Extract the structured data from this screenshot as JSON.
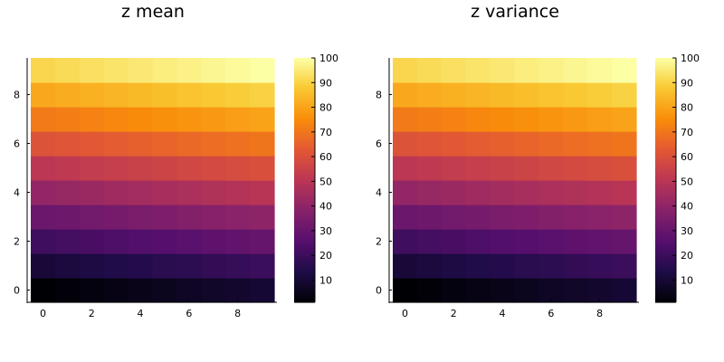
{
  "chart_data": [
    {
      "type": "heatmap",
      "title": "z mean",
      "x": [
        0,
        1,
        2,
        3,
        4,
        5,
        6,
        7,
        8,
        9
      ],
      "y": [
        0,
        1,
        2,
        3,
        4,
        5,
        6,
        7,
        8,
        9
      ],
      "z": [
        [
          1,
          2,
          3,
          4,
          5,
          6,
          7,
          8,
          9,
          10
        ],
        [
          11,
          12,
          13,
          14,
          15,
          16,
          17,
          18,
          19,
          20
        ],
        [
          21,
          22,
          23,
          24,
          25,
          26,
          27,
          28,
          29,
          30
        ],
        [
          31,
          32,
          33,
          34,
          35,
          36,
          37,
          38,
          39,
          40
        ],
        [
          41,
          42,
          43,
          44,
          45,
          46,
          47,
          48,
          49,
          50
        ],
        [
          51,
          52,
          53,
          54,
          55,
          56,
          57,
          58,
          59,
          60
        ],
        [
          61,
          62,
          63,
          64,
          65,
          66,
          67,
          68,
          69,
          70
        ],
        [
          71,
          72,
          73,
          74,
          75,
          76,
          77,
          78,
          79,
          80
        ],
        [
          81,
          82,
          83,
          84,
          85,
          86,
          87,
          88,
          89,
          90
        ],
        [
          91,
          92,
          93,
          94,
          95,
          96,
          97,
          98,
          99,
          100
        ]
      ],
      "xticks": [
        0,
        2,
        4,
        6,
        8
      ],
      "yticks": [
        0,
        2,
        4,
        6,
        8
      ],
      "colorbar_ticks": [
        10,
        20,
        30,
        40,
        50,
        60,
        70,
        80,
        90,
        100
      ],
      "colorbar_range": [
        1,
        100
      ],
      "colormap": "inferno"
    },
    {
      "type": "heatmap",
      "title": "z variance",
      "x": [
        0,
        1,
        2,
        3,
        4,
        5,
        6,
        7,
        8,
        9
      ],
      "y": [
        0,
        1,
        2,
        3,
        4,
        5,
        6,
        7,
        8,
        9
      ],
      "z": [
        [
          1,
          2,
          3,
          4,
          5,
          6,
          7,
          8,
          9,
          10
        ],
        [
          11,
          12,
          13,
          14,
          15,
          16,
          17,
          18,
          19,
          20
        ],
        [
          21,
          22,
          23,
          24,
          25,
          26,
          27,
          28,
          29,
          30
        ],
        [
          31,
          32,
          33,
          34,
          35,
          36,
          37,
          38,
          39,
          40
        ],
        [
          41,
          42,
          43,
          44,
          45,
          46,
          47,
          48,
          49,
          50
        ],
        [
          51,
          52,
          53,
          54,
          55,
          56,
          57,
          58,
          59,
          60
        ],
        [
          61,
          62,
          63,
          64,
          65,
          66,
          67,
          68,
          69,
          70
        ],
        [
          71,
          72,
          73,
          74,
          75,
          76,
          77,
          78,
          79,
          80
        ],
        [
          81,
          82,
          83,
          84,
          85,
          86,
          87,
          88,
          89,
          90
        ],
        [
          91,
          92,
          93,
          94,
          95,
          96,
          97,
          98,
          99,
          100
        ]
      ],
      "xticks": [
        0,
        2,
        4,
        6,
        8
      ],
      "yticks": [
        0,
        2,
        4,
        6,
        8
      ],
      "colorbar_ticks": [
        10,
        20,
        30,
        40,
        50,
        60,
        70,
        80,
        90,
        100
      ],
      "colorbar_range": [
        1,
        100
      ],
      "colormap": "inferno"
    }
  ]
}
